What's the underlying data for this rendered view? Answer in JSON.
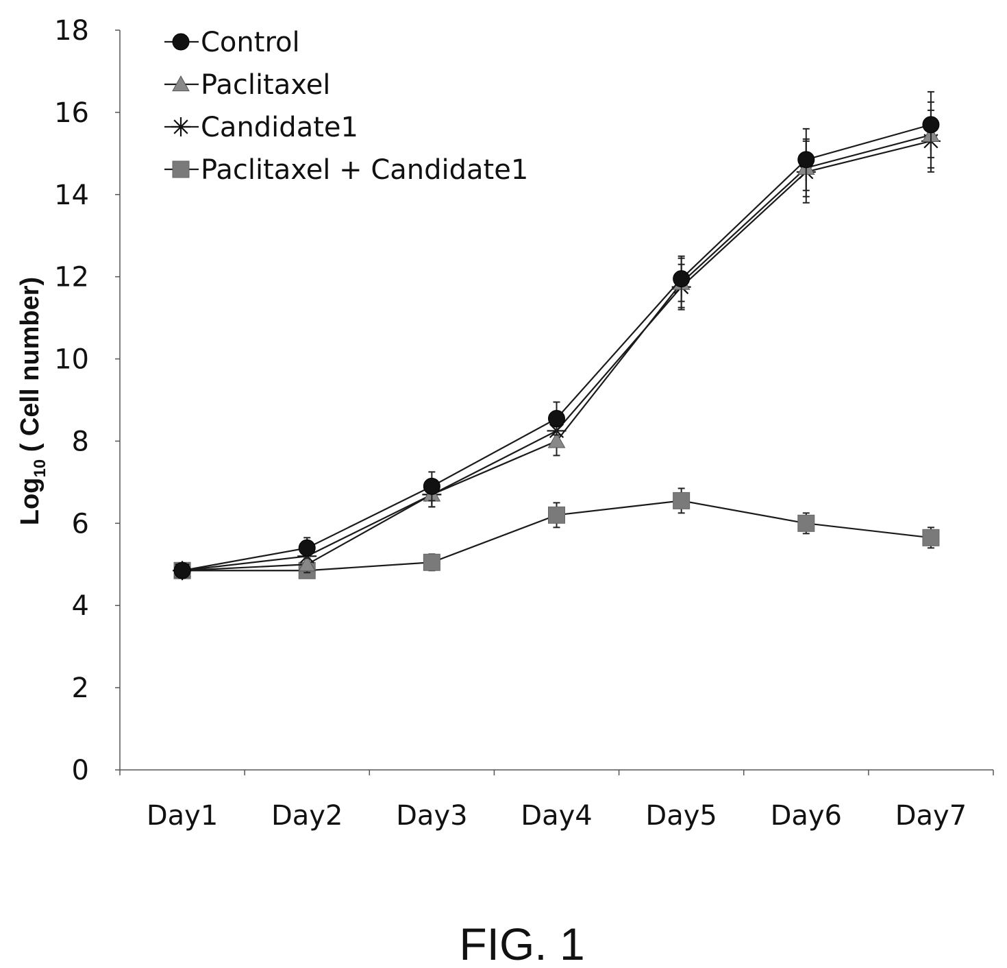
{
  "caption": "FIG. 1",
  "chart_data": {
    "type": "line",
    "title": "",
    "xlabel": "",
    "ylabel_main": "Log",
    "ylabel_sub": "10",
    "ylabel_rest": " ( Cell number)",
    "categories": [
      "Day1",
      "Day2",
      "Day3",
      "Day4",
      "Day5",
      "Day6",
      "Day7"
    ],
    "ylim": [
      0,
      18
    ],
    "yticks": [
      0,
      2,
      4,
      6,
      8,
      10,
      12,
      14,
      16,
      18
    ],
    "grid": false,
    "legend_position": "top-left",
    "series": [
      {
        "name": "Control",
        "marker": "circle",
        "color": "#111111",
        "values": [
          4.85,
          5.4,
          6.9,
          8.55,
          11.95,
          14.85,
          15.7
        ],
        "errors": [
          0.15,
          0.25,
          0.35,
          0.4,
          0.55,
          0.75,
          0.8
        ]
      },
      {
        "name": "Paclitaxel",
        "marker": "triangle",
        "color": "#888888",
        "values": [
          4.85,
          5.0,
          6.7,
          8.0,
          11.85,
          14.65,
          15.45
        ],
        "errors": [
          0.15,
          0.2,
          0.3,
          0.35,
          0.6,
          0.7,
          0.8
        ]
      },
      {
        "name": "Candidate1",
        "marker": "asterisk",
        "color": "#111111",
        "values": [
          4.85,
          5.2,
          6.7,
          8.25,
          11.75,
          14.55,
          15.3
        ],
        "errors": [
          0.15,
          0.2,
          0.3,
          0.35,
          0.55,
          0.75,
          0.75
        ]
      },
      {
        "name": "Paclitaxel + Candidate1",
        "marker": "square",
        "color": "#7a7a7a",
        "values": [
          4.85,
          4.85,
          5.05,
          6.2,
          6.55,
          6.0,
          5.65
        ],
        "errors": [
          0.15,
          0.15,
          0.2,
          0.3,
          0.3,
          0.25,
          0.25
        ]
      }
    ]
  }
}
